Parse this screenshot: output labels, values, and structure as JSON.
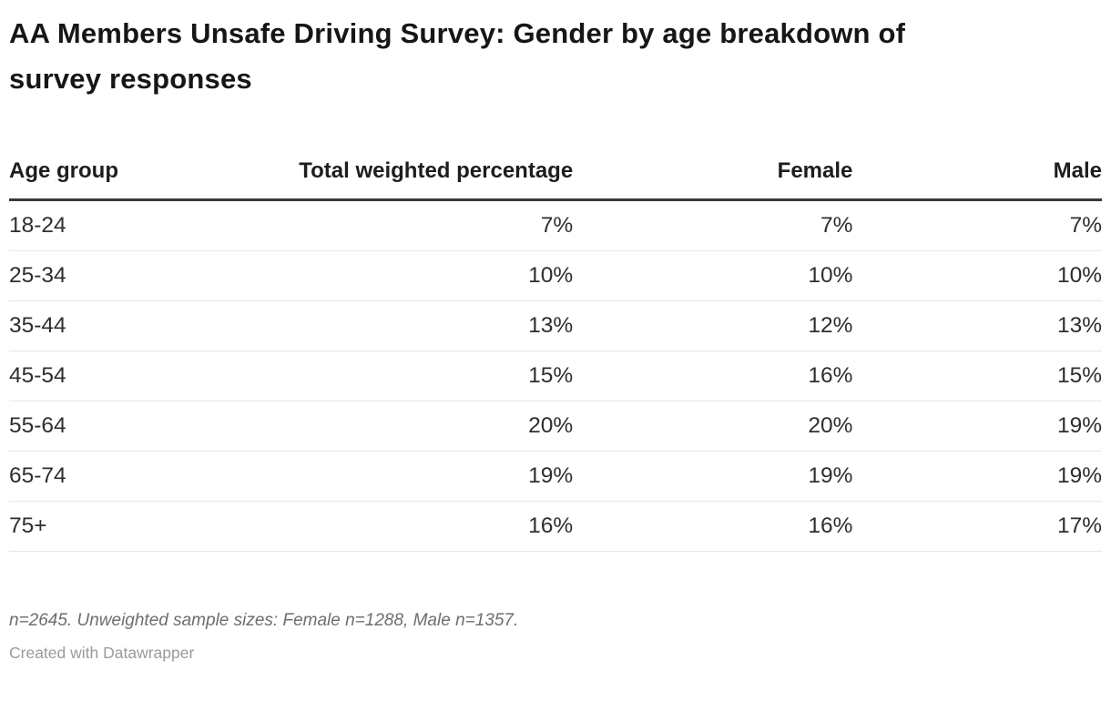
{
  "title": "AA Members Unsafe Driving Survey: Gender by age breakdown of survey responses",
  "chart_data": {
    "type": "table",
    "title": "AA Members Unsafe Driving Survey: Gender by age breakdown of survey responses",
    "columns": [
      "Age group",
      "Total weighted percentage",
      "Female",
      "Male"
    ],
    "categories": [
      "18-24",
      "25-34",
      "35-44",
      "45-54",
      "55-64",
      "65-74",
      "75+"
    ],
    "series": [
      {
        "name": "Total weighted percentage",
        "values": [
          7,
          10,
          13,
          15,
          20,
          19,
          16
        ],
        "unit": "%"
      },
      {
        "name": "Female",
        "values": [
          7,
          10,
          12,
          16,
          20,
          19,
          16
        ],
        "unit": "%"
      },
      {
        "name": "Male",
        "values": [
          7,
          10,
          13,
          15,
          19,
          19,
          17
        ],
        "unit": "%"
      }
    ],
    "notes": "n=2645. Unweighted sample sizes: Female n=1288, Male n=1357."
  },
  "table": {
    "headers": {
      "age_group": "Age group",
      "total": "Total weighted percentage",
      "female": "Female",
      "male": "Male"
    },
    "rows": [
      {
        "age_group": "18-24",
        "total": "7%",
        "female": "7%",
        "male": "7%"
      },
      {
        "age_group": "25-34",
        "total": "10%",
        "female": "10%",
        "male": "10%"
      },
      {
        "age_group": "35-44",
        "total": "13%",
        "female": "12%",
        "male": "13%"
      },
      {
        "age_group": "45-54",
        "total": "15%",
        "female": "16%",
        "male": "15%"
      },
      {
        "age_group": "55-64",
        "total": "20%",
        "female": "20%",
        "male": "19%"
      },
      {
        "age_group": "65-74",
        "total": "19%",
        "female": "19%",
        "male": "19%"
      },
      {
        "age_group": "75+",
        "total": "16%",
        "female": "16%",
        "male": "17%"
      }
    ]
  },
  "footer": {
    "note": "n=2645. Unweighted sample sizes: Female n=1288, Male n=1357.",
    "attribution": "Created with Datawrapper"
  },
  "colors": {
    "title_text": "#161616",
    "body_text": "#2e2e2e",
    "header_rule": "#393939",
    "row_divider": "#e6e6e6",
    "note_text": "#6e6e6e",
    "attribution_text": "#9a9a9a",
    "background": "#ffffff"
  }
}
